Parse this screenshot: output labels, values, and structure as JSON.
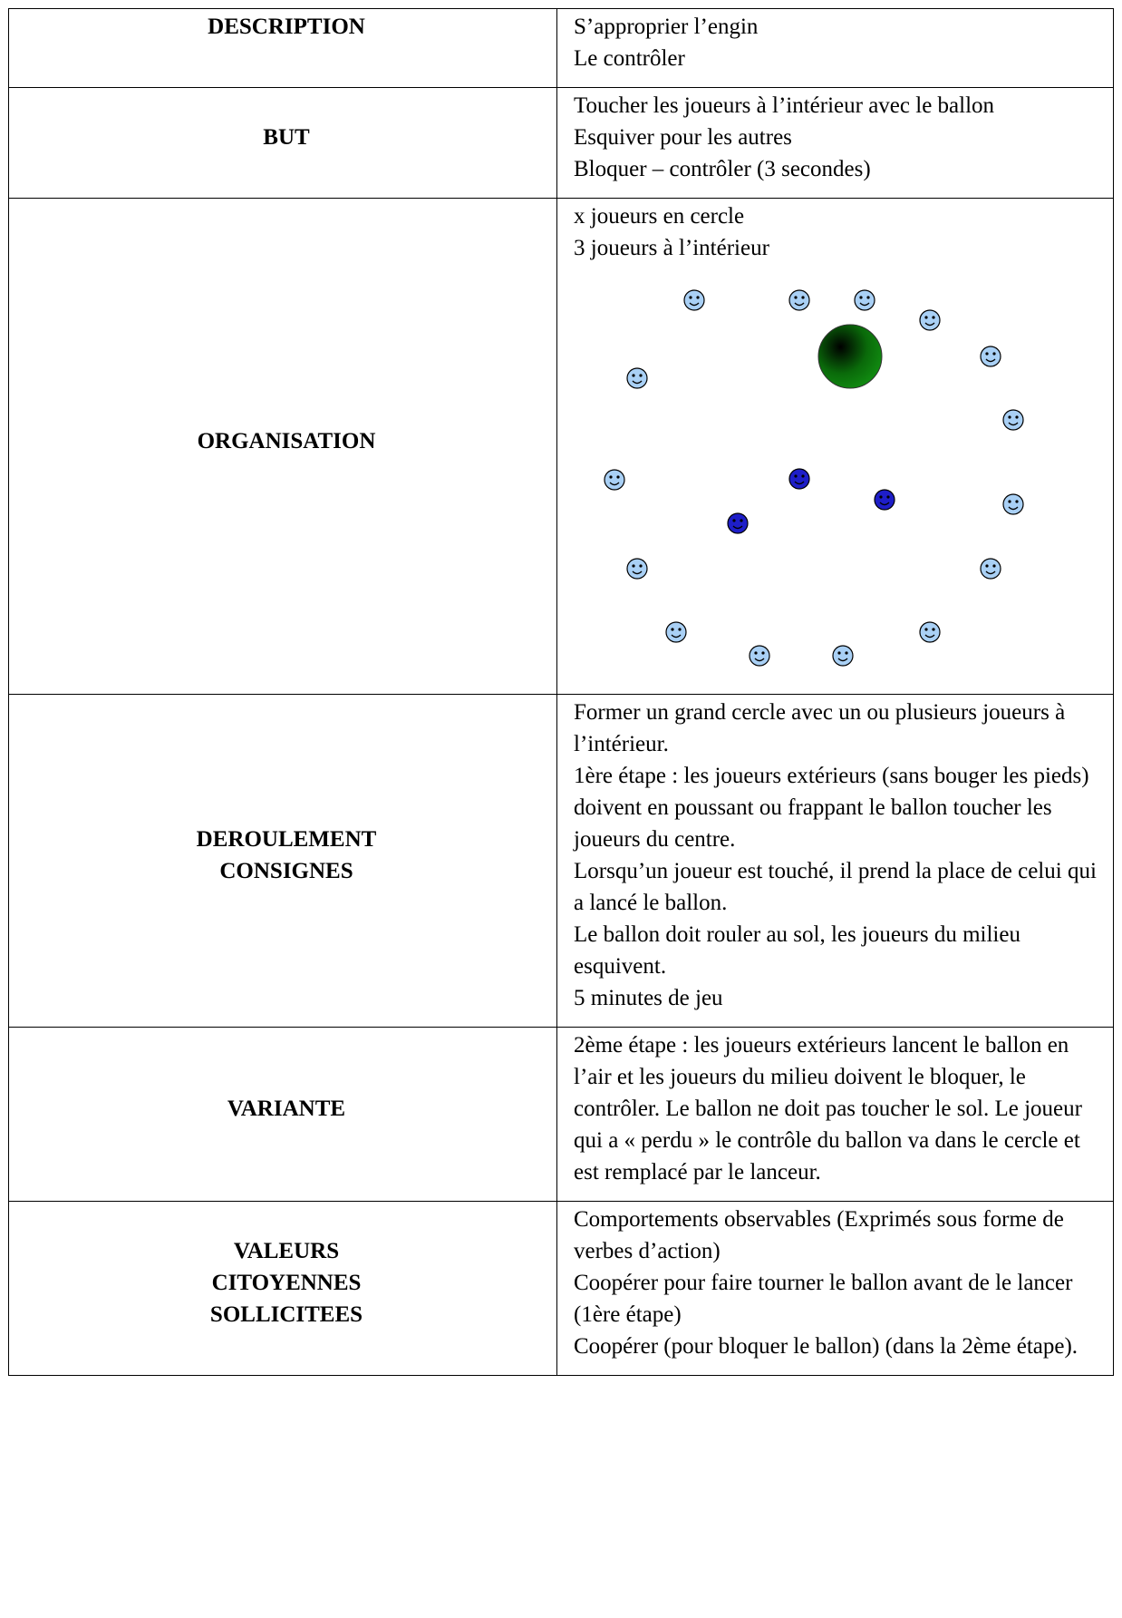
{
  "table": {
    "rows": [
      {
        "label": [
          "DESCRIPTION"
        ],
        "text": [
          "S’approprier l’engin",
          "Le contrôler"
        ]
      },
      {
        "label": [
          "BUT"
        ],
        "text": [
          "Toucher les joueurs à l’intérieur avec le ballon",
          "Esquiver pour les autres",
          "Bloquer – contrôler (3 secondes)"
        ]
      },
      {
        "label": [
          "ORGANISATION"
        ],
        "text": [
          "x joueurs en cercle",
          "3 joueurs à l’intérieur"
        ]
      },
      {
        "label": [
          "DEROULEMENT",
          "CONSIGNES"
        ],
        "text": [
          "Former un grand cercle avec un ou plusieurs joueurs à l’intérieur.",
          "1ère étape : les joueurs extérieurs (sans bouger les pieds) doivent en poussant ou frappant le ballon toucher les joueurs du centre.",
          "Lorsqu’un joueur est touché, il prend la place de celui qui a lancé le ballon.",
          "Le ballon doit rouler au sol, les joueurs du milieu esquivent.",
          "5 minutes de jeu"
        ]
      },
      {
        "label": [
          "VARIANTE"
        ],
        "text": [
          "2ème étape : les joueurs extérieurs lancent le ballon en l’air et les joueurs du milieu doivent le bloquer, le contrôler. Le ballon ne doit pas toucher le sol. Le joueur qui a « perdu » le contrôle du ballon va dans le cercle et est remplacé par le lanceur."
        ]
      },
      {
        "label": [
          "VALEURS",
          "CITOYENNES",
          "SOLLICITEES"
        ],
        "text": [
          "Comportements observables (Exprimés sous forme de verbes d’action)",
          "Coopérer pour faire tourner le ballon avant de le lancer (1ère étape)",
          "Coopérer (pour bloquer le ballon) (dans la 2ème étape)."
        ]
      }
    ]
  }
}
